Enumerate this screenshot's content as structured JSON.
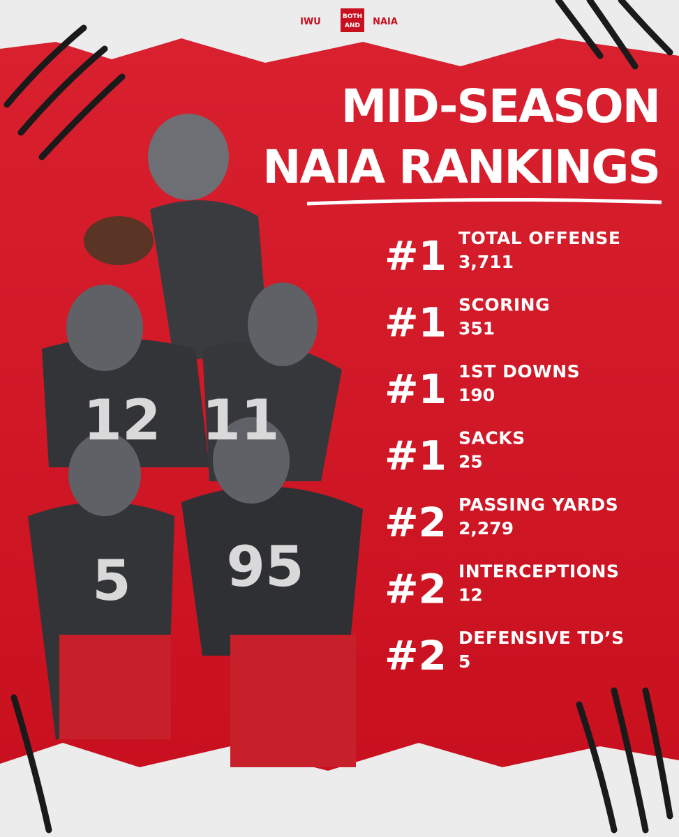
{
  "header": {
    "school_logo": "IWU",
    "divider_top": "BOTH",
    "divider_bottom": "AND",
    "league_logo": "NAIA"
  },
  "title": {
    "line1": "MID-SEASON",
    "line2": "NAIA RANKINGS"
  },
  "rankings": [
    {
      "rank": "#1",
      "label": "TOTAL OFFENSE",
      "value": "3,711"
    },
    {
      "rank": "#1",
      "label": "SCORING",
      "value": "351"
    },
    {
      "rank": "#1",
      "label": "1ST DOWNS",
      "value": "190"
    },
    {
      "rank": "#1",
      "label": "SACKS",
      "value": "25"
    },
    {
      "rank": "#2",
      "label": "PASSING YARDS",
      "value": "2,279"
    },
    {
      "rank": "#2",
      "label": "INTERCEPTIONS",
      "value": "12"
    },
    {
      "rank": "#2",
      "label": "DEFENSIVE TD’S",
      "value": "5"
    }
  ],
  "players": [
    {
      "jersey": "12"
    },
    {
      "jersey": "11"
    },
    {
      "jersey": "5"
    },
    {
      "jersey": "95"
    }
  ]
}
